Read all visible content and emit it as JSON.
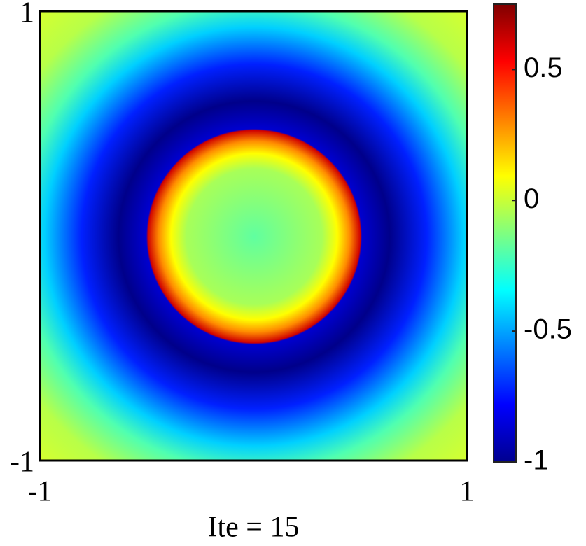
{
  "chart_data": {
    "type": "heatmap",
    "xlabel": "Ite = 15",
    "xlim": [
      -1,
      1
    ],
    "ylim": [
      -1,
      1
    ],
    "xticks": [
      -1,
      1
    ],
    "yticks": [
      -1,
      1
    ],
    "colormap": "jet",
    "clim": [
      -1,
      0.75
    ],
    "cticks": [
      -1,
      -0.5,
      0,
      0.5
    ]
  }
}
